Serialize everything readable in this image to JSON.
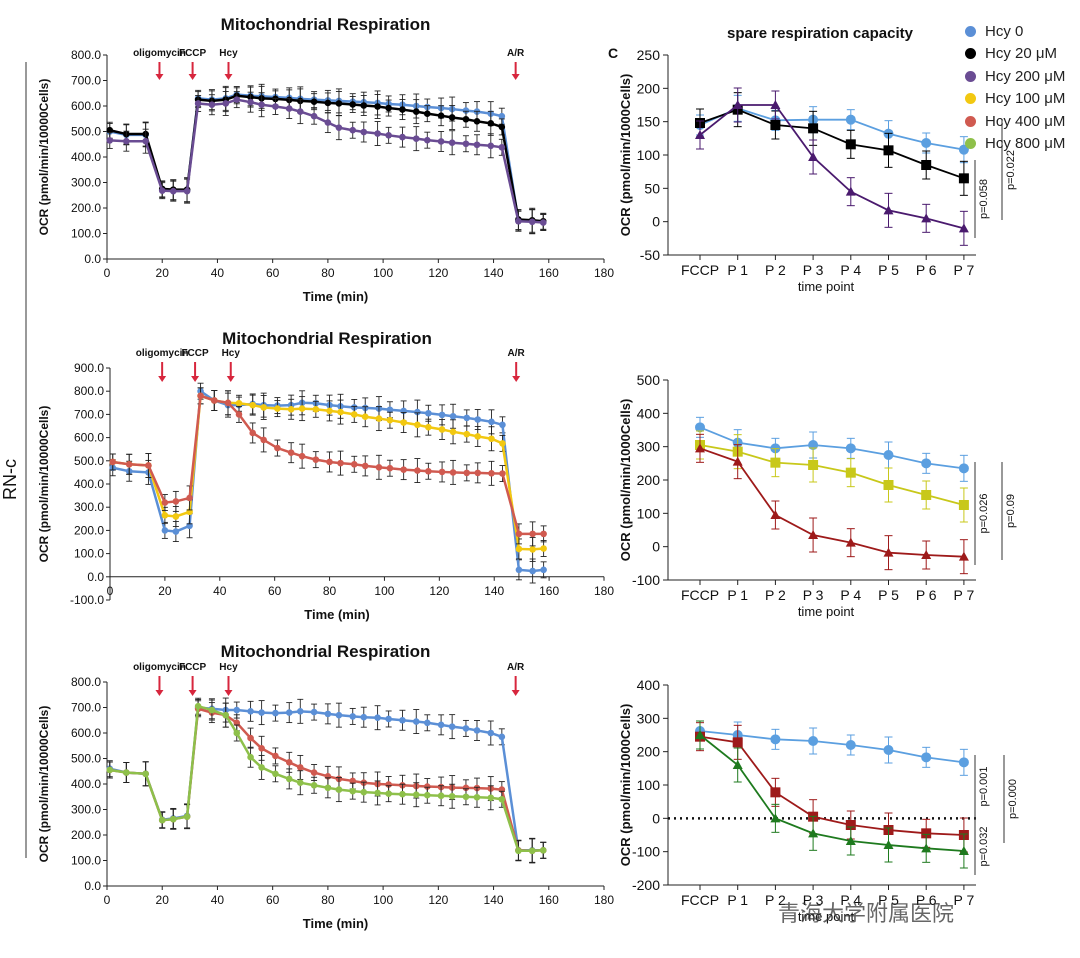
{
  "page": {
    "side_label": "RN-c",
    "watermark": "青海大学附属医院",
    "legend": [
      {
        "label": "Hcy 0",
        "color": "#5b8fd6"
      },
      {
        "label": "Hcy 20 μM",
        "color": "#000000"
      },
      {
        "label": "Hcy 200 μM",
        "color": "#6a4c93"
      },
      {
        "label": "Hcy 100 μM",
        "color": "#f2c811"
      },
      {
        "label": "Hcy 400 μM",
        "color": "#d05a50"
      },
      {
        "label": "Hcy 800 μM",
        "color": "#8ec04a"
      }
    ],
    "panel_letter": "C"
  },
  "chart_data": [
    {
      "type": "line",
      "title": "Mitochondrial Respiration",
      "xlabel": "Time (min)",
      "ylabel": "OCR (pmol/min/10000Cells)",
      "xlim": [
        0,
        180
      ],
      "ylim": [
        0,
        800
      ],
      "xticks": [
        "0",
        "20",
        "40",
        "60",
        "80",
        "100",
        "120",
        "140",
        "160",
        "180"
      ],
      "yticks": [
        "0.0",
        "100.0",
        "200.0",
        "300.0",
        "400.0",
        "500.0",
        "600.0",
        "700.0",
        "800.0"
      ],
      "annotations": [
        {
          "label": "oligomycin",
          "x": 19
        },
        {
          "label": "FCCP",
          "x": 31
        },
        {
          "label": "Hcy",
          "x": 44
        },
        {
          "label": "A/R",
          "x": 148
        }
      ],
      "series": [
        {
          "name": "Hcy 0",
          "color": "#5b8fd6",
          "x": [
            1,
            7,
            14,
            20,
            24,
            29,
            33,
            38,
            43,
            47,
            52,
            56,
            61,
            66,
            70,
            75,
            80,
            84,
            89,
            93,
            98,
            102,
            107,
            112,
            116,
            121,
            125,
            130,
            134,
            139,
            143,
            149,
            154,
            158
          ],
          "y": [
            500,
            487,
            487,
            272,
            270,
            270,
            630,
            625,
            630,
            645,
            640,
            638,
            635,
            632,
            628,
            625,
            622,
            620,
            617,
            615,
            612,
            608,
            605,
            600,
            596,
            592,
            588,
            582,
            578,
            570,
            560,
            150,
            148,
            145
          ]
        },
        {
          "name": "Hcy 20 μM",
          "color": "#000000",
          "x": [
            1,
            7,
            14,
            20,
            24,
            29,
            33,
            38,
            43,
            47,
            52,
            56,
            61,
            66,
            70,
            75,
            80,
            84,
            89,
            93,
            98,
            102,
            107,
            112,
            116,
            121,
            125,
            130,
            134,
            139,
            143,
            149,
            154,
            158
          ],
          "y": [
            505,
            490,
            490,
            275,
            272,
            272,
            625,
            620,
            625,
            640,
            635,
            630,
            628,
            624,
            620,
            617,
            612,
            610,
            606,
            602,
            598,
            592,
            586,
            578,
            570,
            562,
            555,
            548,
            540,
            532,
            518,
            155,
            152,
            148
          ]
        },
        {
          "name": "Hcy 200 μM",
          "color": "#6a4c93",
          "x": [
            1,
            7,
            14,
            20,
            24,
            29,
            33,
            38,
            43,
            47,
            52,
            56,
            61,
            66,
            70,
            75,
            80,
            84,
            89,
            93,
            98,
            102,
            107,
            112,
            116,
            121,
            125,
            130,
            134,
            139,
            143,
            149,
            154,
            158
          ],
          "y": [
            465,
            462,
            462,
            268,
            266,
            266,
            610,
            605,
            610,
            625,
            615,
            605,
            598,
            590,
            578,
            560,
            535,
            515,
            505,
            498,
            492,
            485,
            478,
            472,
            466,
            461,
            456,
            452,
            448,
            444,
            438,
            148,
            146,
            143
          ]
        }
      ]
    },
    {
      "type": "line",
      "title": "spare respiration capacity",
      "xlabel": "time  point",
      "ylabel": "OCR (pmol/min/1000Cells)",
      "ylim": [
        -50,
        250
      ],
      "categories": [
        "FCCP",
        "P 1",
        "P 2",
        "P 3",
        "P 4",
        "P 5",
        "P 6",
        "P 7"
      ],
      "yticks": [
        "-50",
        "0",
        "50",
        "100",
        "150",
        "200",
        "250"
      ],
      "pvalues": [
        "p=0.058",
        "p=0.022"
      ],
      "series": [
        {
          "name": "Hcy 0",
          "color": "#5b9fe0",
          "marker": "circle",
          "values": [
            145,
            170,
            152,
            153,
            153,
            132,
            118,
            108
          ]
        },
        {
          "name": "Hcy 20 μM",
          "color": "#000000",
          "marker": "square",
          "values": [
            148,
            168,
            145,
            140,
            116,
            107,
            85,
            65
          ]
        },
        {
          "name": "Hcy 200 μM",
          "color": "#4a1a6e",
          "marker": "triangle",
          "values": [
            130,
            175,
            175,
            97,
            45,
            17,
            5,
            -10
          ]
        }
      ]
    },
    {
      "type": "line",
      "title": "Mitochondrial Respiration",
      "xlabel": "Time (min)",
      "ylabel": "OCR (pmol/min/10000Cells)",
      "xlim": [
        0,
        180
      ],
      "ylim": [
        -100,
        900
      ],
      "xticks": [
        "0",
        "20",
        "40",
        "60",
        "80",
        "100",
        "120",
        "140",
        "160",
        "180"
      ],
      "yticks": [
        "-100.0",
        "0.0",
        "100.0",
        "200.0",
        "300.0",
        "400.0",
        "500.0",
        "600.0",
        "700.0",
        "800.0",
        "900.0"
      ],
      "annotations": [
        {
          "label": "oligomycin",
          "x": 19
        },
        {
          "label": "FCCP",
          "x": 31
        },
        {
          "label": "Hcy",
          "x": 44
        },
        {
          "label": "A/R",
          "x": 148
        }
      ],
      "series": [
        {
          "name": "Hcy 0",
          "color": "#5b8fd6",
          "x": [
            1,
            7,
            14,
            20,
            24,
            29,
            33,
            38,
            43,
            47,
            52,
            56,
            61,
            66,
            70,
            75,
            80,
            84,
            89,
            93,
            98,
            102,
            107,
            112,
            116,
            121,
            125,
            130,
            134,
            139,
            143,
            149,
            154,
            158
          ],
          "y": [
            470,
            455,
            450,
            200,
            195,
            220,
            800,
            760,
            740,
            740,
            745,
            740,
            738,
            740,
            750,
            748,
            740,
            735,
            730,
            728,
            725,
            720,
            715,
            710,
            705,
            698,
            692,
            685,
            678,
            668,
            655,
            30,
            25,
            30
          ]
        },
        {
          "name": "Hcy 100 μM",
          "color": "#f2c811",
          "x": [
            1,
            7,
            14,
            20,
            24,
            29,
            33,
            38,
            43,
            47,
            52,
            56,
            61,
            66,
            70,
            75,
            80,
            84,
            89,
            93,
            98,
            102,
            107,
            112,
            116,
            121,
            125,
            130,
            134,
            139,
            143,
            149,
            154,
            158
          ],
          "y": [
            495,
            485,
            480,
            265,
            260,
            280,
            780,
            760,
            750,
            748,
            740,
            730,
            725,
            722,
            725,
            722,
            715,
            710,
            700,
            690,
            682,
            675,
            665,
            655,
            645,
            635,
            625,
            615,
            605,
            595,
            575,
            120,
            118,
            122
          ]
        },
        {
          "name": "Hcy 400 μM",
          "color": "#d05a50",
          "x": [
            1,
            7,
            14,
            20,
            24,
            29,
            33,
            38,
            43,
            47,
            52,
            56,
            61,
            66,
            70,
            75,
            80,
            84,
            89,
            93,
            98,
            102,
            107,
            112,
            116,
            121,
            125,
            130,
            134,
            139,
            143,
            149,
            154,
            158
          ],
          "y": [
            495,
            485,
            480,
            320,
            325,
            340,
            780,
            760,
            750,
            700,
            620,
            590,
            555,
            535,
            520,
            505,
            495,
            490,
            485,
            478,
            472,
            468,
            462,
            458,
            455,
            452,
            450,
            448,
            448,
            446,
            445,
            185,
            185,
            185
          ]
        }
      ]
    },
    {
      "type": "line",
      "title": "",
      "xlabel": "time  point",
      "ylabel": "OCR (pmol/min/1000Cells)",
      "ylim": [
        -100,
        500
      ],
      "categories": [
        "FCCP",
        "P 1",
        "P 2",
        "P 3",
        "P 4",
        "P 5",
        "P 6",
        "P 7"
      ],
      "yticks": [
        "-100",
        "0",
        "100",
        "200",
        "300",
        "400",
        "500"
      ],
      "pvalues": [
        "p=0.026",
        "p=0.09"
      ],
      "series": [
        {
          "name": "Hcy 0",
          "color": "#5b9fe0",
          "marker": "circle",
          "values": [
            358,
            312,
            295,
            305,
            295,
            275,
            250,
            235
          ]
        },
        {
          "name": "Hcy 100 μM",
          "color": "#c8c81a",
          "marker": "square",
          "values": [
            305,
            285,
            252,
            245,
            222,
            185,
            155,
            125
          ]
        },
        {
          "name": "Hcy 400 μM",
          "color": "#9e1a1a",
          "marker": "triangle",
          "values": [
            295,
            255,
            95,
            35,
            12,
            -18,
            -25,
            -30
          ]
        }
      ]
    },
    {
      "type": "line",
      "title": "Mitochondrial Respiration",
      "xlabel": "Time (min)",
      "ylabel": "OCR (pmol/min/10000Cells)",
      "xlim": [
        0,
        180
      ],
      "ylim": [
        0,
        800
      ],
      "xticks": [
        "0",
        "20",
        "40",
        "60",
        "80",
        "100",
        "120",
        "140",
        "160",
        "180"
      ],
      "yticks": [
        "0.0",
        "100.0",
        "200.0",
        "300.0",
        "400.0",
        "500.0",
        "600.0",
        "700.0",
        "800.0"
      ],
      "annotations": [
        {
          "label": "oligomycin",
          "x": 19
        },
        {
          "label": "FCCP",
          "x": 31
        },
        {
          "label": "Hcy",
          "x": 44
        },
        {
          "label": "A/R",
          "x": 148
        }
      ],
      "series": [
        {
          "name": "Hcy 0",
          "color": "#5b8fd6",
          "x": [
            1,
            7,
            14,
            20,
            24,
            29,
            33,
            38,
            43,
            47,
            52,
            56,
            61,
            66,
            70,
            75,
            80,
            84,
            89,
            93,
            98,
            102,
            107,
            112,
            116,
            121,
            125,
            130,
            134,
            139,
            143,
            149,
            154,
            158
          ],
          "y": [
            460,
            445,
            440,
            260,
            265,
            275,
            700,
            695,
            690,
            690,
            685,
            680,
            678,
            680,
            685,
            682,
            675,
            670,
            665,
            662,
            660,
            655,
            650,
            645,
            640,
            632,
            625,
            618,
            610,
            600,
            585,
            140,
            140,
            140
          ]
        },
        {
          "name": "Hcy 400 μM",
          "color": "#d05a50",
          "x": [
            1,
            7,
            14,
            20,
            24,
            29,
            33,
            38,
            43,
            47,
            52,
            56,
            61,
            66,
            70,
            75,
            80,
            84,
            89,
            93,
            98,
            102,
            107,
            112,
            116,
            121,
            125,
            130,
            134,
            139,
            143,
            149,
            154,
            158
          ],
          "y": [
            455,
            445,
            440,
            258,
            262,
            272,
            695,
            680,
            670,
            640,
            580,
            540,
            510,
            485,
            465,
            445,
            430,
            420,
            412,
            405,
            400,
            398,
            395,
            392,
            390,
            388,
            386,
            385,
            384,
            382,
            378,
            140,
            138,
            140
          ]
        },
        {
          "name": "Hcy 800 μM",
          "color": "#8ec04a",
          "x": [
            1,
            7,
            14,
            20,
            24,
            29,
            33,
            38,
            43,
            47,
            52,
            56,
            61,
            66,
            70,
            75,
            80,
            84,
            89,
            93,
            98,
            102,
            107,
            112,
            116,
            121,
            125,
            130,
            134,
            139,
            143,
            149,
            154,
            158
          ],
          "y": [
            455,
            445,
            440,
            258,
            262,
            272,
            705,
            690,
            670,
            600,
            505,
            465,
            440,
            420,
            405,
            395,
            385,
            378,
            372,
            368,
            365,
            362,
            360,
            358,
            356,
            354,
            352,
            350,
            348,
            346,
            340,
            138,
            138,
            140
          ]
        }
      ]
    },
    {
      "type": "line",
      "title": "",
      "xlabel": "time  point",
      "ylabel": "OCR (pmol/min/1000Cells)",
      "ylim": [
        -200,
        400
      ],
      "categories": [
        "FCCP",
        "P 1",
        "P 2",
        "P 3",
        "P 4",
        "P 5",
        "P 6",
        "P 7"
      ],
      "yticks": [
        "-200",
        "-100",
        "0",
        "100",
        "200",
        "300",
        "400"
      ],
      "pvalues": [
        "p=0.032",
        "p=0.001",
        "p=0.000"
      ],
      "series": [
        {
          "name": "Hcy 0",
          "color": "#5b9fe0",
          "marker": "circle",
          "values": [
            262,
            250,
            237,
            232,
            220,
            205,
            183,
            168
          ]
        },
        {
          "name": "Hcy 400 μM",
          "color": "#9e1a1a",
          "marker": "square",
          "values": [
            245,
            228,
            78,
            5,
            -20,
            -35,
            -45,
            -50
          ]
        },
        {
          "name": "Hcy 800 μM",
          "color": "#1e7a1e",
          "marker": "triangle",
          "values": [
            250,
            160,
            0,
            -45,
            -68,
            -80,
            -90,
            -98
          ]
        }
      ]
    }
  ]
}
